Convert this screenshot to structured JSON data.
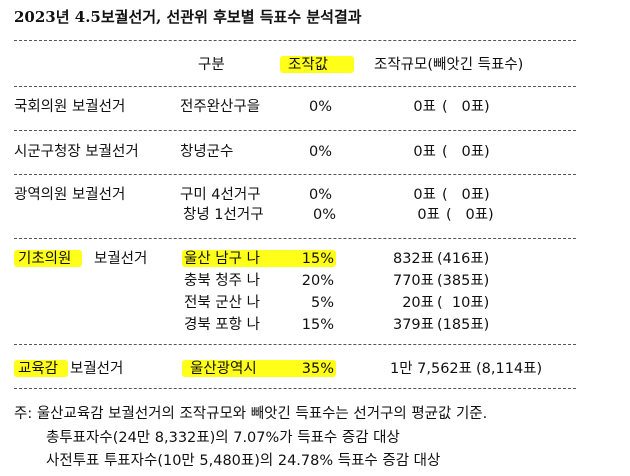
{
  "title": "2023년 4.5보궐선거, 선관위 후보별 득표수 분석결과",
  "header": {
    "col_category": "구분",
    "col_rate": "조작값",
    "col_scale": "조작규모(빼앗긴 득표수)"
  },
  "rows": [
    {
      "election": "국회의원 보궐선거",
      "district": "전주완산구을",
      "rate": "0%",
      "votes": "0표",
      "stolen": "(   0표)"
    },
    {
      "election": "시군구청장 보궐선거",
      "district": "창녕군수",
      "rate": "0%",
      "votes": "0표",
      "stolen": "(   0표)"
    },
    {
      "election": "광역의원 보궐선거",
      "district": "구미 4선거구",
      "rate": "0%",
      "votes": "0표",
      "stolen": "(   0표)"
    },
    {
      "district": "창녕 1선거구",
      "rate": "0%",
      "votes": "0표",
      "stolen": "(   0표)"
    },
    {
      "election_a": "기초의원",
      "election_b": "보궐선거",
      "district": "울산 남구 나",
      "rate": "15%",
      "votes": "832표",
      "stolen": "(416표)"
    },
    {
      "district": "충북 청주 나",
      "rate": "20%",
      "votes": "770표",
      "stolen": "(385표)"
    },
    {
      "district": "전북 군산 나",
      "rate": "5%",
      "votes": "20표",
      "stolen": "(  10표)"
    },
    {
      "district": "경북 포항 나",
      "rate": "15%",
      "votes": "379표",
      "stolen": "(185표)"
    },
    {
      "election_a": "교육감",
      "election_b": "보궐선거",
      "district": "울산광역시",
      "rate": "35%",
      "votes": "1만 7,562표",
      "stolen": "(8,114표)"
    }
  ],
  "notes": [
    "주: 울산교육감 보궐선거의 조작규모와 빼앗긴 득표수는 선거구의 평균값 기준.",
    "총투표자수(24만 8,332표)의 7.07%가 득표수 증감 대상",
    "사전투표 투표자수(10만 5,480표)의 24.78% 득표수 증감 대상"
  ],
  "highlight_color": "#ffff1a"
}
